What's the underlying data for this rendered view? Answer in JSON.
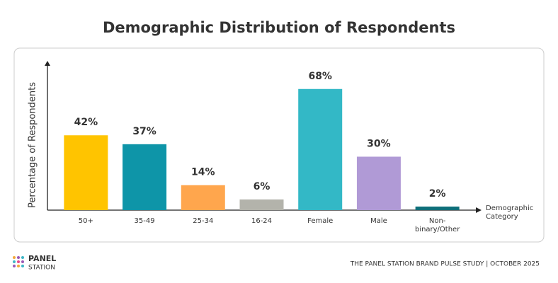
{
  "chart_data": {
    "type": "bar",
    "title": "Demographic Distribution of Respondents",
    "y_label": "Percentage of Respondents",
    "x_label": "Demographic Category",
    "categories": [
      "50+",
      "35-49",
      "25-34",
      "16-24",
      "Female",
      "Male",
      "Non-binary/Other"
    ],
    "values": [
      42,
      37,
      14,
      6,
      68,
      30,
      2
    ],
    "value_labels": [
      "42%",
      "37%",
      "14%",
      "6%",
      "68%",
      "30%",
      "2%"
    ],
    "colors": [
      "#ffc400",
      "#0e95a8",
      "#ffa64d",
      "#b3b3ab",
      "#33b8c6",
      "#b09ad6",
      "#0f6f7a"
    ],
    "ylim": [
      0,
      83
    ]
  },
  "footer": {
    "logo_top": "PANEL",
    "logo_bottom": "STATION",
    "caption": "THE PANEL STATION BRAND PULSE STUDY | OCTOBER 2025"
  }
}
